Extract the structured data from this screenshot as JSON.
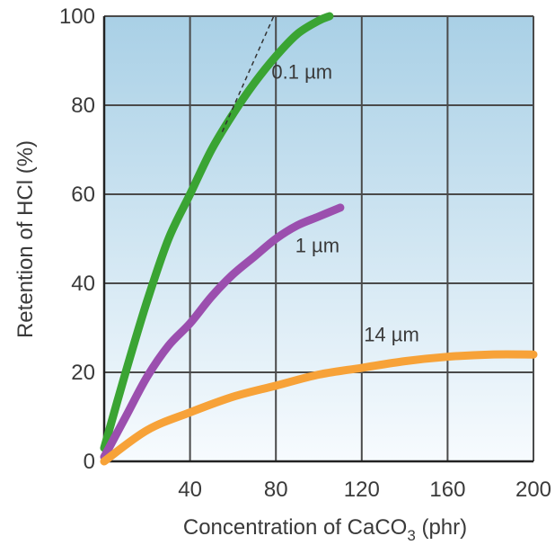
{
  "chart_data": {
    "type": "line",
    "xlabel": {
      "prefix": "Concentration of CaCO",
      "subscript": "3",
      "suffix": " (phr)"
    },
    "ylabel": "Retention of HCl (%)",
    "xlim": [
      0,
      200
    ],
    "ylim": [
      0,
      100
    ],
    "xticks": [
      "40",
      "80",
      "120",
      "160",
      "200"
    ],
    "yticks": [
      "0",
      "20",
      "40",
      "60",
      "80",
      "100"
    ],
    "grid": true,
    "colors": {
      "bg_top": "#a9d0e6",
      "bg_bottom": "#f7fbfe",
      "grid": "#4a4a4a",
      "axis": "#222222"
    },
    "series": [
      {
        "name": "0.1 µm",
        "color": "#3aa433",
        "x": [
          0,
          10,
          20,
          30,
          40,
          50,
          60,
          70,
          80,
          90,
          100,
          105
        ],
        "y": [
          3,
          20,
          36,
          50,
          60,
          70,
          78,
          85,
          91,
          96,
          99,
          100
        ]
      },
      {
        "name": "1 µm",
        "color": "#9b4fae",
        "x": [
          0,
          10,
          20,
          30,
          40,
          50,
          60,
          70,
          80,
          90,
          100,
          110
        ],
        "y": [
          1,
          10,
          19,
          26,
          31,
          37,
          42,
          46,
          50,
          53,
          55,
          57
        ]
      },
      {
        "name": "14 µm",
        "color": "#f7a238",
        "x": [
          0,
          20,
          40,
          60,
          80,
          100,
          120,
          140,
          160,
          180,
          200
        ],
        "y": [
          0,
          7,
          11,
          14.5,
          17,
          19.5,
          21,
          22.5,
          23.5,
          24,
          24
        ]
      }
    ],
    "initial_slope": {
      "x": [
        55,
        79
      ],
      "y": [
        74,
        100
      ]
    }
  }
}
